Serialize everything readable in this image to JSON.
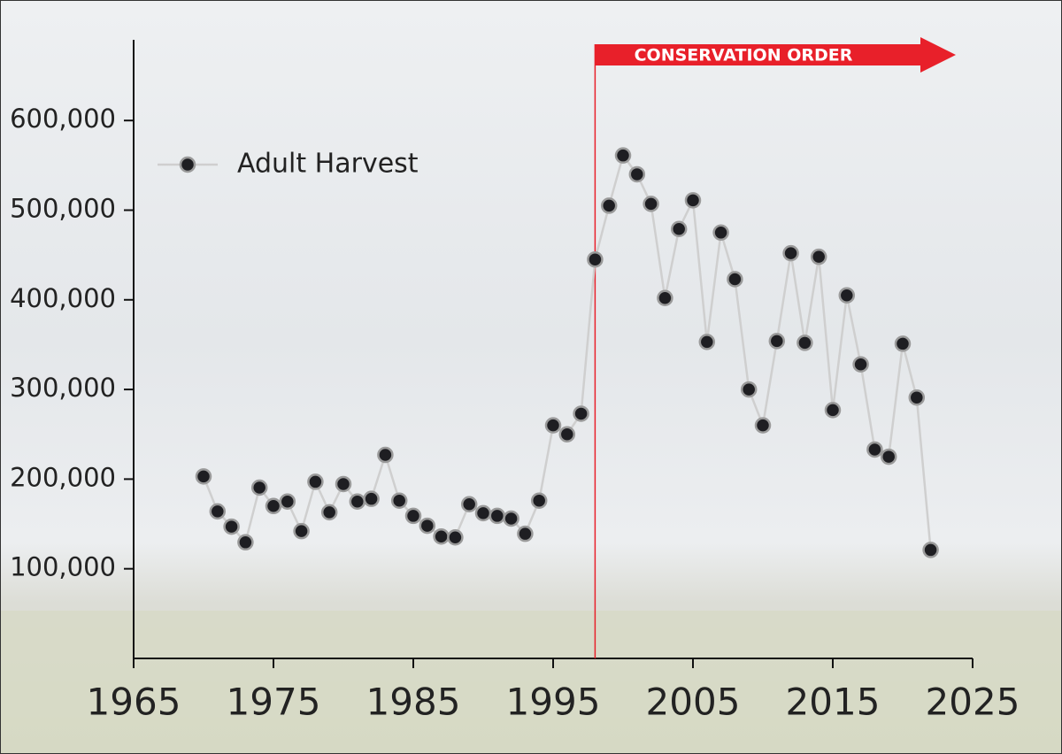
{
  "chart_data": {
    "type": "line",
    "legend_position": "upper left",
    "x": [
      1970,
      1971,
      1972,
      1973,
      1974,
      1975,
      1976,
      1977,
      1978,
      1979,
      1980,
      1981,
      1982,
      1983,
      1984,
      1985,
      1986,
      1987,
      1988,
      1989,
      1990,
      1991,
      1992,
      1993,
      1994,
      1995,
      1996,
      1997,
      1998,
      1999,
      2000,
      2001,
      2002,
      2003,
      2004,
      2005,
      2006,
      2007,
      2008,
      2009,
      2010,
      2011,
      2012,
      2013,
      2014,
      2015,
      2016,
      2017,
      2018,
      2019,
      2020,
      2021,
      2022
    ],
    "series": [
      {
        "name": "Adult Harvest",
        "color": "#cfcfcf",
        "marker_color": "#1e1e22",
        "values": [
          203000,
          164000,
          147000,
          129500,
          190500,
          170000,
          175000,
          142000,
          197000,
          163000,
          194500,
          175000,
          178000,
          227000,
          176000,
          159000,
          148000,
          136000,
          135000,
          172000,
          162000,
          159000,
          156000,
          139000,
          176000,
          260000,
          250000,
          273000,
          445000,
          505000,
          561000,
          540000,
          507000,
          402000,
          479000,
          511000,
          353000,
          475000,
          423000,
          300000,
          260000,
          354000,
          452000,
          352000,
          448000,
          277000,
          405000,
          328000,
          233000,
          225000,
          351000,
          291000,
          121000
        ]
      }
    ],
    "xlim": [
      1965,
      2025
    ],
    "xticks": [
      1965,
      1975,
      1985,
      1995,
      2005,
      2015,
      2025
    ],
    "ylim": [
      0,
      690000
    ],
    "yticks": [
      {
        "value": 100000,
        "label": "100,000"
      },
      {
        "value": 200000,
        "label": "200,000"
      },
      {
        "value": 300000,
        "label": "300,000"
      },
      {
        "value": 400000,
        "label": "400,000"
      },
      {
        "value": 500000,
        "label": "500,000"
      },
      {
        "value": 600000,
        "label": "600,000"
      }
    ],
    "annotation": {
      "text": "CONSERVATION ORDER",
      "x": 1998,
      "color": "#e8202a"
    }
  }
}
